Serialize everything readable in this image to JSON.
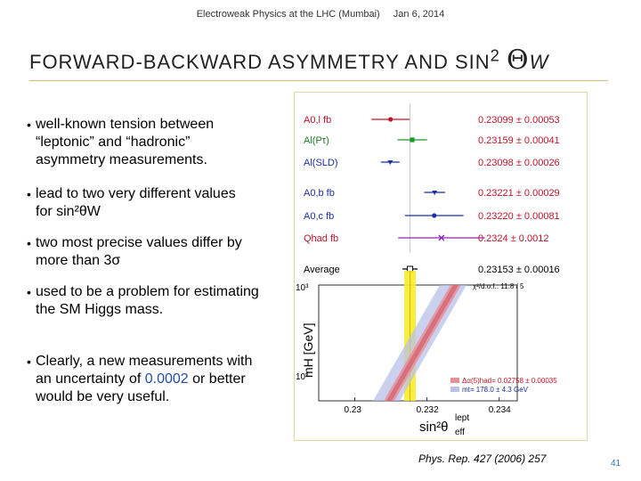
{
  "header": {
    "talk": "Electroweak Physics at the LHC (Mumbai)",
    "date": "Jan 6, 2014"
  },
  "slide": {
    "title_text": "FORWARD-BACKWARD ASYMMETRY AND SIN",
    "title_sup": "2",
    "title_theta": "Θ",
    "title_sub": "W",
    "page_number": "41",
    "reference": "Phys. Rep. 427 (2006) 257"
  },
  "bullets": [
    {
      "line1": "well-known tension between",
      "line2": "“leptonic” and “hadronic”",
      "line3": "asymmetry measurements."
    },
    {
      "line1": "lead to two very different values",
      "line2": "for  sin²θW"
    },
    {
      "line1": "two most precise values differ by",
      "line2": "more than  3σ"
    },
    {
      "line1": "used to be a problem for estimating",
      "line2": "the SM Higgs mass."
    },
    {
      "line1": "Clearly, a new measurements with",
      "line2_pre": "an uncertainty of ",
      "line2_hl": "0.0002",
      "line2_post": " or better",
      "line3": "would be very useful."
    }
  ],
  "chart_data": {
    "type": "scatter",
    "title": "",
    "measurements": [
      {
        "label": "A0,l fb",
        "value": 0.23099,
        "error": 0.00053,
        "text": "0.23099 ± 0.00053"
      },
      {
        "label": "Al(Pτ)",
        "value": 0.23159,
        "error": 0.00041,
        "text": "0.23159 ± 0.00041"
      },
      {
        "label": "Al(SLD)",
        "value": 0.23098,
        "error": 0.00026,
        "text": "0.23098 ± 0.00026"
      },
      {
        "label": "A0,b fb",
        "value": 0.23221,
        "error": 0.00029,
        "text": "0.23221 ± 0.00029"
      },
      {
        "label": "A0,c fb",
        "value": 0.2322,
        "error": 0.00081,
        "text": "0.23220 ± 0.00081"
      },
      {
        "label": "Qhad fb",
        "value": 0.2324,
        "error": 0.0012,
        "text": "0.2324 ± 0.0012"
      }
    ],
    "average": {
      "label": "Average",
      "value": 0.23153,
      "error": 0.00016,
      "text": "0.23153 ± 0.00016"
    },
    "chi2": "χ²/d.o.f.: 11.8 / 5",
    "xlabel": "sin²θ",
    "xlabel_sup": "lept",
    "xlabel_sub": "eff",
    "ylabel": "mH  [GeV]",
    "xlim": [
      0.229,
      0.2345
    ],
    "xticks": [
      "0.23",
      "0.232",
      "0.234"
    ],
    "yticks": [
      "10³",
      "10²"
    ],
    "legend": [
      {
        "text": "Δα(5)had= 0.02758 ± 0.00035"
      },
      {
        "text": "mt= 178.0 ± 4.3 GeV"
      }
    ]
  }
}
